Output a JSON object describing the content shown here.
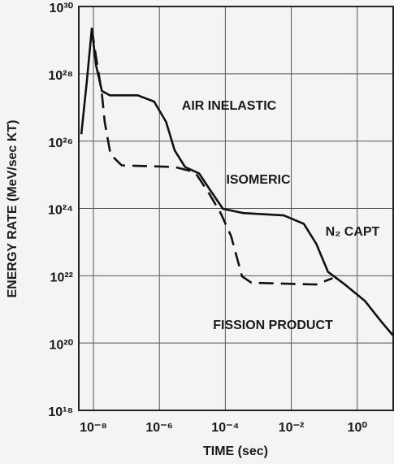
{
  "chart_data": {
    "type": "line",
    "xlabel": "TIME (sec)",
    "ylabel": "ENERGY RATE (MeV/sec KT)",
    "log_x": true,
    "log_y": true,
    "grid": true,
    "xlim": [
      3.6e-09,
      12.3
    ],
    "ylim": [
      1e+18,
      1e+30
    ],
    "xticks": [
      {
        "value": 1e-08,
        "label": "10⁻⁸"
      },
      {
        "value": 1e-06,
        "label": "10⁻⁶"
      },
      {
        "value": 0.0001,
        "label": "10⁻⁴"
      },
      {
        "value": 0.01,
        "label": "10⁻²"
      },
      {
        "value": 1,
        "label": "10⁰"
      }
    ],
    "yticks": [
      {
        "value": 1e+18,
        "label": "10¹⁸"
      },
      {
        "value": 1e+20,
        "label": "10²⁰"
      },
      {
        "value": 1e+22,
        "label": "10²²"
      },
      {
        "value": 1e+24,
        "label": "10²⁴"
      },
      {
        "value": 1e+26,
        "label": "10²⁶"
      },
      {
        "value": 1e+28,
        "label": "10²⁸"
      },
      {
        "value": 1e+30,
        "label": "10³⁰"
      }
    ],
    "annotations": [
      "AIR INELASTIC",
      "ISOMERIC",
      "N₂ CAPT",
      "FISSION PRODUCT"
    ],
    "series": [
      {
        "color": "#111111",
        "dash": false,
        "x": [
          4.3e-09,
          6.3e-09,
          8.9e-09,
          1.2e-08,
          1.8e-08,
          3.1e-08,
          2.2e-07,
          6.9e-07,
          1.6e-06,
          2.9e-06,
          6e-06,
          1.6e-05,
          3.6e-05,
          8.5e-05,
          0.00035,
          0.0059,
          0.024,
          0.057,
          0.13,
          0.42,
          1.7,
          5.2,
          12
        ],
        "values": [
          1.6e+26,
          6e+27,
          2.2e+29,
          1.8e+28,
          3.1e+27,
          2.3e+27,
          2.3e+27,
          1.5e+27,
          3.7e+26,
          5.3e+25,
          1.7e+25,
          1.1e+25,
          3.3e+24,
          9.7e+23,
          7.3e+23,
          6.2e+23,
          3.5e+23,
          8.9e+22,
          1.3e+22,
          5.5e+21,
          1.8e+21,
          4.5e+20,
          1.7e+20
        ]
      },
      {
        "color": "#111111",
        "dash": true,
        "x": [
          8.9e-09,
          1.2e-08,
          1.8e-08,
          2.2e-08,
          3.3e-08,
          7.2e-08,
          2.9e-06,
          1.2e-05,
          3.2e-05,
          7.2e-05,
          0.00015,
          0.00032,
          0.00062,
          0.057,
          0.18
        ],
        "values": [
          2.2e+29,
          3.2e+28,
          2.6e+27,
          3.7e+26,
          4e+25,
          1.9e+25,
          1.7e+25,
          1.2e+25,
          2.8e+24,
          7.3e+23,
          1.5e+23,
          9.6e+21,
          6.2e+21,
          5.5e+21,
          8.5e+21
        ]
      }
    ]
  }
}
